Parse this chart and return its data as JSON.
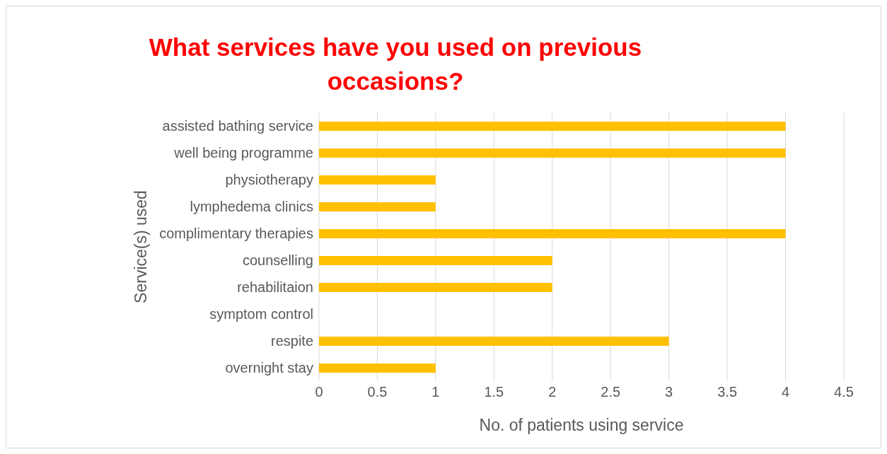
{
  "chart_data": {
    "type": "bar",
    "orientation": "horizontal",
    "title": "What services have you used on previous occasions?",
    "xlabel": "No. of patients using service",
    "ylabel": "Service(s) used",
    "categories": [
      "assisted bathing service",
      "well being programme",
      "physiotherapy",
      "lymphedema clinics",
      "complimentary therapies",
      "counselling",
      "rehabilitaion",
      "symptom control",
      "respite",
      "overnight stay"
    ],
    "values": [
      4,
      4,
      1,
      1,
      4,
      2,
      2,
      0,
      3,
      1
    ],
    "color": "#ffc000",
    "xlim": [
      0,
      4.5
    ],
    "xticks": [
      0,
      0.5,
      1,
      1.5,
      2,
      2.5,
      3,
      3.5,
      4,
      4.5
    ],
    "grid": "x"
  }
}
